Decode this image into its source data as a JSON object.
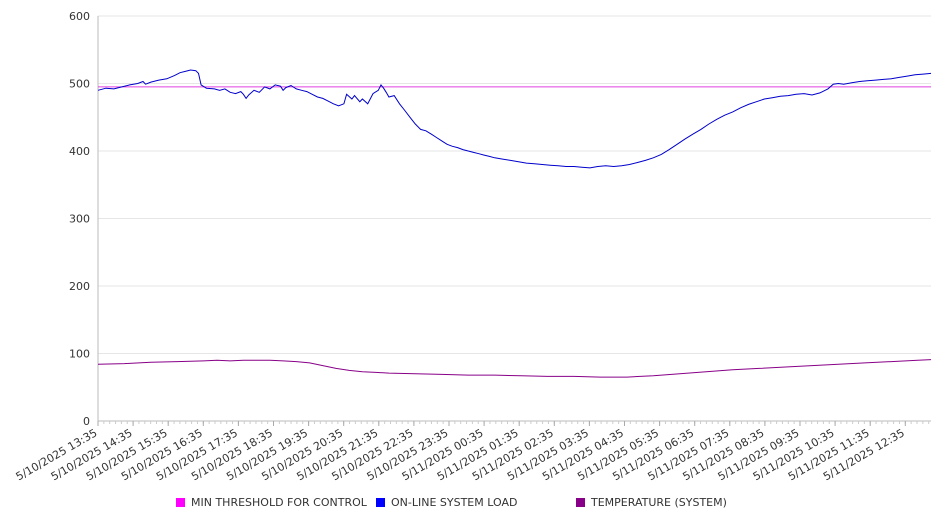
{
  "chart_data": {
    "type": "line",
    "ylim": [
      0,
      600
    ],
    "y_ticks": [
      0,
      100,
      200,
      300,
      400,
      500,
      600
    ],
    "x_ticks": [
      "5/10/2025 13:35",
      "5/10/2025 14:35",
      "5/10/2025 15:35",
      "5/10/2025 16:35",
      "5/10/2025 17:35",
      "5/10/2025 18:35",
      "5/10/2025 19:35",
      "5/10/2025 20:35",
      "5/10/2025 21:35",
      "5/10/2025 22:35",
      "5/10/2025 23:35",
      "5/11/2025 00:35",
      "5/11/2025 01:35",
      "5/11/2025 02:35",
      "5/11/2025 03:35",
      "5/11/2025 04:35",
      "5/11/2025 05:35",
      "5/11/2025 06:35",
      "5/11/2025 07:35",
      "5/11/2025 08:35",
      "5/11/2025 09:35",
      "5/11/2025 10:35",
      "5/11/2025 11:35",
      "5/11/2025 12:35"
    ],
    "x_max": 23.7,
    "grid": "horizontal",
    "legend_placement": "bottom",
    "series": [
      {
        "name": "MIN THRESHOLD FOR CONTROL",
        "color": "#ff00ff",
        "line_color": "#e040e0",
        "points": [
          [
            0,
            495
          ],
          [
            23.7,
            495
          ]
        ]
      },
      {
        "name": "ON-LINE SYSTEM LOAD",
        "color": "#0000ff",
        "line_color": "#0000cc",
        "points": [
          [
            0,
            490
          ],
          [
            0.3,
            493
          ],
          [
            0.6,
            492
          ],
          [
            0.9,
            495
          ],
          [
            1.2,
            498
          ],
          [
            1.5,
            500
          ],
          [
            1.7,
            503
          ],
          [
            1.8,
            499
          ],
          [
            2.0,
            502
          ],
          [
            2.3,
            505
          ],
          [
            2.6,
            507
          ],
          [
            2.9,
            512
          ],
          [
            3.1,
            516
          ],
          [
            3.3,
            518
          ],
          [
            3.5,
            520
          ],
          [
            3.7,
            519
          ],
          [
            3.8,
            515
          ],
          [
            3.9,
            498
          ],
          [
            4.1,
            493
          ],
          [
            4.4,
            492
          ],
          [
            4.6,
            490
          ],
          [
            4.8,
            492
          ],
          [
            5.0,
            487
          ],
          [
            5.2,
            485
          ],
          [
            5.4,
            488
          ],
          [
            5.5,
            484
          ],
          [
            5.6,
            478
          ],
          [
            5.7,
            483
          ],
          [
            5.9,
            490
          ],
          [
            6.1,
            487
          ],
          [
            6.3,
            495
          ],
          [
            6.5,
            492
          ],
          [
            6.7,
            498
          ],
          [
            6.9,
            496
          ],
          [
            7.0,
            490
          ],
          [
            7.1,
            494
          ],
          [
            7.3,
            497
          ],
          [
            7.5,
            492
          ],
          [
            7.7,
            490
          ],
          [
            7.9,
            488
          ],
          [
            8.1,
            484
          ],
          [
            8.3,
            480
          ],
          [
            8.5,
            478
          ],
          [
            8.7,
            474
          ],
          [
            8.9,
            470
          ],
          [
            9.1,
            467
          ],
          [
            9.3,
            470
          ],
          [
            9.4,
            484
          ],
          [
            9.6,
            477
          ],
          [
            9.7,
            482
          ],
          [
            9.9,
            473
          ],
          [
            10.0,
            477
          ],
          [
            10.2,
            470
          ],
          [
            10.4,
            485
          ],
          [
            10.6,
            490
          ],
          [
            10.7,
            498
          ],
          [
            10.8,
            493
          ],
          [
            10.9,
            487
          ],
          [
            11.0,
            480
          ],
          [
            11.2,
            482
          ],
          [
            11.4,
            470
          ],
          [
            11.6,
            460
          ],
          [
            11.8,
            450
          ],
          [
            12.0,
            440
          ],
          [
            12.2,
            432
          ],
          [
            12.4,
            430
          ],
          [
            12.6,
            425
          ],
          [
            12.8,
            420
          ],
          [
            13.0,
            415
          ],
          [
            13.2,
            410
          ],
          [
            13.4,
            407
          ],
          [
            13.6,
            405
          ],
          [
            13.8,
            402
          ],
          [
            14.0,
            400
          ],
          [
            14.2,
            398
          ],
          [
            14.4,
            396
          ],
          [
            14.6,
            394
          ],
          [
            14.8,
            392
          ],
          [
            15.0,
            390
          ],
          [
            15.3,
            388
          ],
          [
            15.6,
            386
          ],
          [
            15.9,
            384
          ],
          [
            16.2,
            382
          ],
          [
            16.5,
            381
          ],
          [
            16.8,
            380
          ],
          [
            17.1,
            379
          ],
          [
            17.4,
            378
          ],
          [
            17.7,
            377
          ],
          [
            18.0,
            377
          ],
          [
            18.3,
            376
          ],
          [
            18.6,
            375
          ],
          [
            18.9,
            377
          ],
          [
            19.2,
            378
          ],
          [
            19.5,
            377
          ],
          [
            19.8,
            378
          ],
          [
            20.1,
            380
          ],
          [
            20.4,
            383
          ],
          [
            20.7,
            386
          ],
          [
            21.0,
            390
          ],
          [
            21.3,
            395
          ],
          [
            21.6,
            402
          ],
          [
            21.9,
            410
          ],
          [
            22.2,
            418
          ],
          [
            22.5,
            425
          ],
          [
            22.8,
            432
          ],
          [
            23.1,
            440
          ],
          [
            23.4,
            447
          ],
          [
            23.7,
            453
          ],
          [
            24.0,
            458
          ],
          [
            24.3,
            464
          ],
          [
            24.6,
            469
          ],
          [
            24.9,
            473
          ],
          [
            25.2,
            477
          ],
          [
            25.5,
            479
          ],
          [
            25.8,
            481
          ],
          [
            26.1,
            482
          ],
          [
            26.4,
            484
          ],
          [
            26.7,
            485
          ],
          [
            27.0,
            483
          ],
          [
            27.3,
            486
          ],
          [
            27.6,
            492
          ],
          [
            27.8,
            499
          ],
          [
            28.0,
            500
          ],
          [
            28.2,
            499
          ],
          [
            28.5,
            501
          ],
          [
            28.8,
            503
          ],
          [
            29.1,
            504
          ],
          [
            29.4,
            505
          ],
          [
            29.7,
            506
          ],
          [
            30.0,
            507
          ],
          [
            30.3,
            509
          ],
          [
            30.6,
            511
          ],
          [
            30.9,
            513
          ],
          [
            31.2,
            514
          ],
          [
            31.5,
            515
          ]
        ]
      },
      {
        "name": "TEMPERATURE (SYSTEM)",
        "color": "#880088",
        "line_color": "#880088",
        "points": [
          [
            0,
            84
          ],
          [
            1,
            85
          ],
          [
            2,
            87
          ],
          [
            3,
            88
          ],
          [
            4,
            89
          ],
          [
            4.5,
            90
          ],
          [
            5,
            89
          ],
          [
            5.5,
            90
          ],
          [
            6,
            90
          ],
          [
            6.5,
            90
          ],
          [
            7,
            89
          ],
          [
            7.5,
            88
          ],
          [
            8,
            86
          ],
          [
            8.5,
            82
          ],
          [
            9,
            78
          ],
          [
            9.5,
            75
          ],
          [
            10,
            73
          ],
          [
            10.5,
            72
          ],
          [
            11,
            71
          ],
          [
            12,
            70
          ],
          [
            13,
            69
          ],
          [
            14,
            68
          ],
          [
            15,
            68
          ],
          [
            16,
            67
          ],
          [
            17,
            66
          ],
          [
            18,
            66
          ],
          [
            19,
            65
          ],
          [
            20,
            65
          ],
          [
            20.5,
            66
          ],
          [
            21,
            67
          ],
          [
            22,
            70
          ],
          [
            23,
            73
          ],
          [
            24,
            76
          ],
          [
            25,
            78
          ],
          [
            26,
            80
          ],
          [
            27,
            82
          ],
          [
            28,
            84
          ],
          [
            29,
            86
          ],
          [
            30,
            88
          ],
          [
            31,
            90
          ],
          [
            31.5,
            91
          ]
        ]
      }
    ]
  }
}
